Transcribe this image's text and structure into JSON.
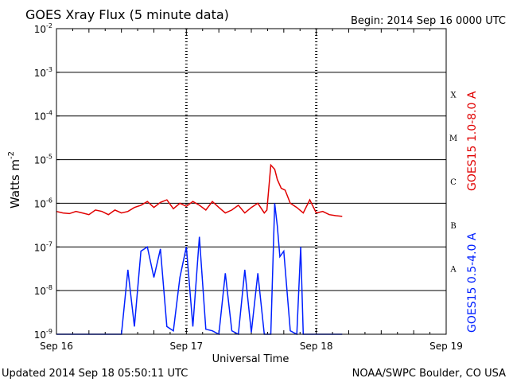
{
  "header": {
    "title": "GOES Xray Flux (5 minute data)",
    "begin": "Begin:  2014 Sep 16 0000 UTC"
  },
  "footer": {
    "updated": "Updated 2014 Sep 18 05:50:11 UTC",
    "credit": "NOAA/SWPC Boulder, CO USA"
  },
  "chart_data": {
    "type": "line",
    "title": "GOES Xray Flux (5 minute data)",
    "xlabel": "Universal Time",
    "ylabel": "Watts m",
    "ylabel_sup": "-2",
    "y_scale": "log",
    "ylim": [
      1e-09,
      0.01
    ],
    "xlim_days": [
      0,
      3
    ],
    "x_ticks": [
      "Sep 16",
      "Sep 17",
      "Sep 18",
      "Sep 19"
    ],
    "y_ticks": [
      {
        "base": "10",
        "exp": "-2"
      },
      {
        "base": "10",
        "exp": "-3"
      },
      {
        "base": "10",
        "exp": "-4"
      },
      {
        "base": "10",
        "exp": "-5"
      },
      {
        "base": "10",
        "exp": "-6"
      },
      {
        "base": "10",
        "exp": "-7"
      },
      {
        "base": "10",
        "exp": "-8"
      },
      {
        "base": "10",
        "exp": "-9"
      }
    ],
    "flare_classes": [
      "X",
      "M",
      "C",
      "B",
      "A"
    ],
    "grid": true,
    "series": [
      {
        "name": "GOES15 1.0-8.0 A",
        "color": "#e00000",
        "x": [
          0,
          0.05,
          0.1,
          0.15,
          0.2,
          0.25,
          0.3,
          0.35,
          0.4,
          0.45,
          0.5,
          0.55,
          0.6,
          0.65,
          0.7,
          0.75,
          0.8,
          0.85,
          0.9,
          0.95,
          1.0,
          1.05,
          1.1,
          1.15,
          1.2,
          1.25,
          1.3,
          1.35,
          1.4,
          1.45,
          1.5,
          1.55,
          1.6,
          1.62,
          1.65,
          1.68,
          1.7,
          1.73,
          1.76,
          1.8,
          1.85,
          1.9,
          1.95,
          2.0,
          2.05,
          2.1,
          2.15,
          2.2
        ],
        "y": [
          6.5e-07,
          6e-07,
          5.8e-07,
          6.5e-07,
          6e-07,
          5.5e-07,
          7e-07,
          6.5e-07,
          5.5e-07,
          7e-07,
          6e-07,
          6.5e-07,
          8e-07,
          9e-07,
          1.1e-06,
          8e-07,
          1.05e-06,
          1.2e-06,
          7.5e-07,
          1e-06,
          8.5e-07,
          1.1e-06,
          9e-07,
          7e-07,
          1.1e-06,
          8e-07,
          6e-07,
          7e-07,
          9e-07,
          6e-07,
          8e-07,
          1e-06,
          6e-07,
          7e-07,
          7.5e-06,
          6e-06,
          3.5e-06,
          2.2e-06,
          2e-06,
          1e-06,
          8e-07,
          6e-07,
          1.2e-06,
          6e-07,
          6.5e-07,
          5.5e-07,
          5.2e-07,
          5e-07
        ]
      },
      {
        "name": "GOES15 0.5-4.0 A",
        "color": "#0020ff",
        "x": [
          0,
          0.1,
          0.2,
          0.3,
          0.4,
          0.5,
          0.55,
          0.6,
          0.65,
          0.7,
          0.75,
          0.8,
          0.85,
          0.9,
          0.95,
          1.0,
          1.05,
          1.1,
          1.15,
          1.2,
          1.25,
          1.3,
          1.35,
          1.4,
          1.45,
          1.5,
          1.55,
          1.6,
          1.62,
          1.65,
          1.68,
          1.7,
          1.72,
          1.75,
          1.8,
          1.85,
          1.88,
          1.9,
          1.95,
          2.0,
          2.05,
          2.1,
          2.15,
          2.2
        ],
        "y": [
          1e-09,
          1e-09,
          1e-09,
          1e-09,
          1e-09,
          1e-09,
          3e-08,
          1.5e-09,
          8e-08,
          1e-07,
          2e-08,
          9e-08,
          1.5e-09,
          1.2e-09,
          2e-08,
          1e-07,
          1.5e-09,
          1.7e-07,
          1.3e-09,
          1.2e-09,
          1e-09,
          2.5e-08,
          1.2e-09,
          1e-09,
          3e-08,
          1.1e-09,
          2.5e-08,
          1e-09,
          1e-09,
          1e-09,
          1e-06,
          3e-07,
          6e-08,
          8e-08,
          1.2e-09,
          1e-09,
          1e-07,
          1e-09,
          1e-09,
          1e-09,
          1e-09,
          1e-09,
          1e-09,
          1e-09
        ]
      }
    ]
  }
}
